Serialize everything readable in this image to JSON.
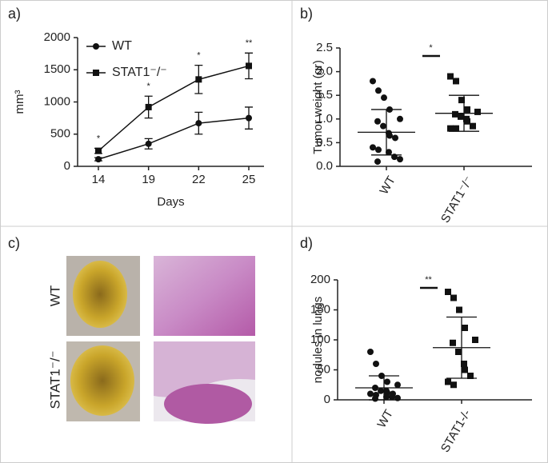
{
  "chart_data": [
    {
      "type": "line",
      "panel_label": "a)",
      "xlabel": "Days",
      "ylabel": "mm³",
      "categories": [
        "14",
        "19",
        "22",
        "25"
      ],
      "series": [
        {
          "name": "WT",
          "color": "#111111",
          "marker": "circle",
          "values": [
            110,
            350,
            670,
            750
          ],
          "errors": [
            25,
            80,
            170,
            170
          ]
        },
        {
          "name": "STAT1⁻/⁻",
          "color": "#111111",
          "marker": "square",
          "values": [
            240,
            920,
            1350,
            1560
          ],
          "errors": [
            40,
            170,
            220,
            200
          ]
        }
      ],
      "annotations": [
        "*",
        "*",
        "*",
        "**"
      ],
      "ylim": [
        0,
        2000
      ],
      "yticks": [
        0,
        500,
        1000,
        1500,
        2000
      ]
    },
    {
      "type": "dotplot",
      "panel_label": "b)",
      "ylabel": "Tumor weight (gr)",
      "categories": [
        "WT",
        "STAT1⁻/⁻"
      ],
      "markers": [
        "circle",
        "square"
      ],
      "points": [
        [
          1.8,
          1.6,
          1.45,
          1.2,
          1.0,
          0.95,
          0.85,
          0.7,
          0.65,
          0.6,
          0.4,
          0.35,
          0.3,
          0.2,
          0.15,
          0.1
        ],
        [
          1.9,
          1.8,
          1.4,
          1.2,
          1.15,
          1.1,
          1.05,
          1.0,
          0.95,
          0.85,
          0.8,
          0.8
        ]
      ],
      "means": [
        0.72,
        1.12
      ],
      "errors": [
        0.48,
        0.38
      ],
      "significance": "*",
      "ylim": [
        0,
        2.5
      ],
      "yticks": [
        {
          "value": 0,
          "label": "0.0"
        },
        {
          "value": 0.5,
          "label": "0.5"
        },
        {
          "value": 1,
          "label": "1.0"
        },
        {
          "value": 1.5,
          "label": "1.5"
        },
        {
          "value": 2,
          "label": "2.0"
        },
        {
          "value": 2.5,
          "label": "2.5"
        }
      ]
    },
    {
      "type": "dotplot",
      "panel_label": "d)",
      "ylabel": "nodules in lungs",
      "categories": [
        "WT",
        "STAT1-/-"
      ],
      "markers": [
        "circle",
        "square"
      ],
      "points": [
        [
          80,
          60,
          40,
          30,
          25,
          20,
          15,
          15,
          12,
          10,
          10,
          8,
          5,
          5,
          3,
          2
        ],
        [
          180,
          170,
          150,
          120,
          100,
          95,
          80,
          60,
          50,
          40,
          30,
          25
        ]
      ],
      "means": [
        20,
        87
      ],
      "errors": [
        20,
        51
      ],
      "significance": "**",
      "ylim": [
        0,
        200
      ],
      "yticks": [
        0,
        50,
        100,
        150,
        200
      ]
    }
  ],
  "panel_c": {
    "label": "c)",
    "rows": [
      "WT",
      "STAT1⁻/⁻"
    ]
  }
}
